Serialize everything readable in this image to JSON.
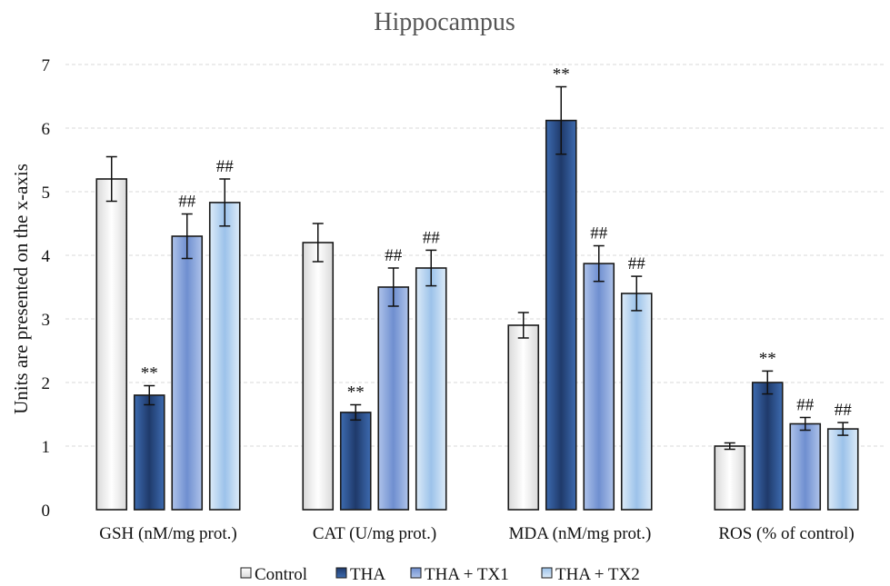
{
  "chart_data": {
    "type": "bar",
    "title": "Hippocampus",
    "xlabel": "",
    "ylabel": "Units are presented on the x-axis",
    "ylim": [
      0,
      7
    ],
    "yticks": [
      "0",
      "1",
      "2",
      "3",
      "4",
      "5",
      "6",
      "7"
    ],
    "grid": true,
    "legend_position": "bottom",
    "categories": [
      "GSH (nM/mg prot.)",
      "CAT (U/mg prot.)",
      "MDA (nM/mg prot.)",
      "ROS (% of control)"
    ],
    "series": [
      {
        "name": "Control",
        "values": [
          5.2,
          4.2,
          2.9,
          1.0
        ],
        "errors": [
          0.35,
          0.3,
          0.2,
          0.05
        ],
        "sig": [
          "",
          "",
          "",
          ""
        ],
        "color_top": "#ffffff",
        "color_bottom": "#d9d9d9"
      },
      {
        "name": "THA",
        "values": [
          1.8,
          1.53,
          6.12,
          2.0
        ],
        "errors": [
          0.15,
          0.12,
          0.53,
          0.18
        ],
        "sig": [
          "**",
          "**",
          "**",
          "**"
        ],
        "color_top": "#1f3a6b",
        "color_bottom": "#3d6bb0"
      },
      {
        "name": "THA + TX1",
        "values": [
          4.3,
          3.5,
          3.87,
          1.35
        ],
        "errors": [
          0.35,
          0.3,
          0.28,
          0.1
        ],
        "sig": [
          "##",
          "##",
          "##",
          "##"
        ],
        "color_top": "#6f8fd0",
        "color_bottom": "#aec3ea"
      },
      {
        "name": "THA + TX2",
        "values": [
          4.83,
          3.8,
          3.4,
          1.27
        ],
        "errors": [
          0.37,
          0.28,
          0.27,
          0.1
        ],
        "sig": [
          "##",
          "##",
          "##",
          "##"
        ],
        "color_top": "#9cc2ea",
        "color_bottom": "#dcebf8"
      }
    ]
  }
}
